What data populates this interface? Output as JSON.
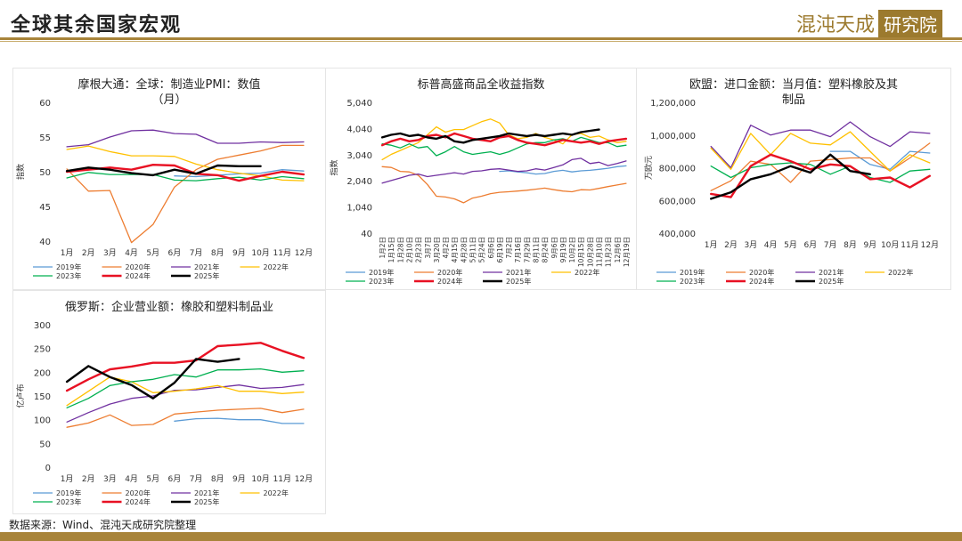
{
  "header": {
    "title": "全球其余国家宏观",
    "brand_text": "混沌天成",
    "brand_box": "研究院"
  },
  "footer": {
    "source": "数据来源：Wind、混沌天成研究院整理"
  },
  "colors": {
    "2019": "#5b9bd5",
    "2020": "#ed7d31",
    "2021": "#7030a0",
    "2022": "#ffc000",
    "2023": "#00b050",
    "2024": "#e81123",
    "2025": "#000000"
  },
  "chart_data": [
    {
      "id": "pmi",
      "type": "line",
      "title_lines": [
        "摩根大通：全球：制造业PMI：数值",
        "（月）"
      ],
      "ylabel": "指数",
      "ylim": [
        40,
        60
      ],
      "yticks": [
        "60",
        "55",
        "50",
        "45",
        "40"
      ],
      "ytick_values": [
        60,
        55,
        50,
        45,
        40
      ],
      "categories": [
        "1月",
        "2月",
        "3月",
        "4月",
        "5月",
        "6月",
        "7月",
        "8月",
        "9月",
        "10月",
        "11月",
        "12月"
      ],
      "legend": [
        [
          "2019年",
          "2020年",
          "2021年",
          "2022年"
        ],
        [
          "2023年",
          "2024年",
          "2025年"
        ]
      ],
      "series": [
        {
          "name": "2019年",
          "color": "#5b9bd5",
          "values": [
            null,
            null,
            null,
            null,
            null,
            49.4,
            49.3,
            49.5,
            49.7,
            49.8,
            50.3,
            50.1
          ]
        },
        {
          "name": "2020年",
          "color": "#ed7d31",
          "values": [
            50.4,
            47.2,
            47.3,
            39.8,
            42.4,
            47.8,
            50.3,
            51.8,
            52.4,
            53.0,
            53.8,
            53.8
          ]
        },
        {
          "name": "2021年",
          "color": "#7030a0",
          "values": [
            53.6,
            53.9,
            55.0,
            55.9,
            56.0,
            55.5,
            55.4,
            54.1,
            54.1,
            54.3,
            54.2,
            54.3
          ]
        },
        {
          "name": "2022年",
          "color": "#ffc000",
          "values": [
            53.2,
            53.7,
            52.9,
            52.3,
            52.3,
            52.2,
            51.1,
            50.3,
            49.8,
            49.4,
            48.8,
            48.7
          ]
        },
        {
          "name": "2023年",
          "color": "#00b050",
          "values": [
            49.1,
            49.9,
            49.6,
            49.6,
            49.6,
            48.8,
            48.7,
            49.0,
            49.2,
            48.8,
            49.3,
            49.0
          ]
        },
        {
          "name": "2024年",
          "color": "#e81123",
          "values": [
            50.0,
            50.3,
            50.6,
            50.3,
            51.0,
            50.9,
            49.7,
            49.5,
            48.7,
            49.4,
            50.0,
            49.6
          ]
        },
        {
          "name": "2025年",
          "color": "#000000",
          "values": [
            50.1,
            50.6,
            50.3,
            49.8,
            49.5,
            50.3,
            49.7,
            50.9,
            50.8,
            50.8,
            null,
            null
          ]
        }
      ]
    },
    {
      "id": "spgsci",
      "type": "line",
      "title_lines": [
        "标普高盛商品全收益指数"
      ],
      "ylabel": "指数",
      "ylim": [
        40,
        5040
      ],
      "yticks": [
        "5,040",
        "4,040",
        "3,040",
        "2,040",
        "1,040",
        "40"
      ],
      "ytick_values": [
        5040,
        4040,
        3040,
        2040,
        1040,
        40
      ],
      "categories": [
        "1月2日",
        "1月15日",
        "1月28日",
        "2月10日",
        "2月23日",
        "3月7日",
        "3月20日",
        "4月2日",
        "4月15日",
        "4月28日",
        "5月11日",
        "5月24日",
        "6月6日",
        "6月19日",
        "7月2日",
        "7月16日",
        "7月29日",
        "8月11日",
        "8月24日",
        "9月6日",
        "9月19日",
        "10月2日",
        "10月15日",
        "10月28日",
        "11月10日",
        "11月23日",
        "12月6日",
        "12月19日"
      ],
      "legend": [
        [
          "2019年",
          "2020年",
          "2021年",
          "2022年"
        ],
        [
          "2023年",
          "2024年",
          "2025年"
        ]
      ],
      "series": [
        {
          "name": "2019年",
          "color": "#5b9bd5",
          "values": [
            null,
            null,
            null,
            null,
            null,
            null,
            null,
            null,
            null,
            null,
            null,
            null,
            null,
            2400,
            2420,
            2380,
            2350,
            2300,
            2320,
            2400,
            2440,
            2380,
            2420,
            2440,
            2480,
            2520,
            2580,
            2610
          ]
        },
        {
          "name": "2020年",
          "color": "#ed7d31",
          "values": [
            2580,
            2550,
            2400,
            2380,
            2250,
            1900,
            1450,
            1420,
            1350,
            1200,
            1380,
            1450,
            1550,
            1600,
            1620,
            1650,
            1680,
            1720,
            1760,
            1700,
            1650,
            1620,
            1700,
            1690,
            1750,
            1820,
            1880,
            1940
          ]
        },
        {
          "name": "2021年",
          "color": "#7030a0",
          "values": [
            1950,
            2050,
            2150,
            2250,
            2300,
            2200,
            2250,
            2300,
            2350,
            2300,
            2400,
            2420,
            2480,
            2500,
            2450,
            2400,
            2420,
            2500,
            2450,
            2550,
            2650,
            2850,
            2900,
            2700,
            2750,
            2620,
            2700,
            2800
          ]
        },
        {
          "name": "2022年",
          "color": "#ffc000",
          "values": [
            2850,
            3050,
            3200,
            3350,
            3500,
            3800,
            4100,
            3900,
            4000,
            4000,
            4150,
            4300,
            4400,
            4250,
            3800,
            3650,
            3700,
            3850,
            3700,
            3600,
            3450,
            3800,
            3850,
            3700,
            3750,
            3600,
            3500,
            3550
          ]
        },
        {
          "name": "2023年",
          "color": "#00b050",
          "values": [
            3450,
            3400,
            3300,
            3450,
            3300,
            3350,
            3000,
            3150,
            3350,
            3150,
            3050,
            3100,
            3150,
            3050,
            3150,
            3300,
            3450,
            3500,
            3500,
            3600,
            3650,
            3550,
            3700,
            3600,
            3500,
            3500,
            3350,
            3400
          ]
        },
        {
          "name": "2024年",
          "color": "#e81123",
          "values": [
            3400,
            3550,
            3650,
            3550,
            3600,
            3750,
            3800,
            3700,
            3850,
            3750,
            3650,
            3600,
            3550,
            3700,
            3750,
            3600,
            3500,
            3450,
            3400,
            3500,
            3600,
            3550,
            3500,
            3550,
            3450,
            3550,
            3600,
            3650
          ]
        },
        {
          "name": "2025年",
          "color": "#000000",
          "values": [
            3700,
            3800,
            3850,
            3750,
            3800,
            3700,
            3650,
            3750,
            3550,
            3500,
            3600,
            3650,
            3700,
            3750,
            3850,
            3800,
            3750,
            3800,
            3750,
            3800,
            3850,
            3800,
            3900,
            3950,
            4000,
            null,
            null,
            null
          ]
        }
      ]
    },
    {
      "id": "eu-imports",
      "type": "line",
      "title_lines": [
        "欧盟：进口金额：当月值：塑料橡胶及其",
        "制品"
      ],
      "ylabel": "万欧元",
      "ylim": [
        400000,
        1200000
      ],
      "yticks": [
        "1,200,000",
        "1,000,000",
        "800,000",
        "600,000",
        "400,000"
      ],
      "ytick_values": [
        1200000,
        1000000,
        800000,
        600000,
        400000
      ],
      "categories": [
        "1月",
        "2月",
        "3月",
        "4月",
        "5月",
        "6月",
        "7月",
        "8月",
        "9月",
        "10月",
        "11月",
        "12月"
      ],
      "legend": [
        [
          "2019年",
          "2020年",
          "2021年",
          "2022年"
        ],
        [
          "2023年",
          "2024年",
          "2025年"
        ]
      ],
      "series": [
        {
          "name": "2019年",
          "color": "#5b9bd5",
          "values": [
            null,
            null,
            null,
            null,
            null,
            null,
            900000,
            900000,
            820000,
            790000,
            900000,
            890000
          ]
        },
        {
          "name": "2020年",
          "color": "#ed7d31",
          "values": [
            660000,
            720000,
            840000,
            820000,
            710000,
            840000,
            850000,
            860000,
            860000,
            780000,
            860000,
            950000
          ]
        },
        {
          "name": "2021年",
          "color": "#7030a0",
          "values": [
            930000,
            800000,
            1060000,
            1000000,
            1030000,
            1030000,
            990000,
            1080000,
            990000,
            930000,
            1020000,
            1010000
          ]
        },
        {
          "name": "2022年",
          "color": "#ffc000",
          "values": [
            920000,
            790000,
            1010000,
            880000,
            1010000,
            950000,
            940000,
            1020000,
            900000,
            780000,
            880000,
            830000
          ]
        },
        {
          "name": "2023年",
          "color": "#00b050",
          "values": [
            810000,
            740000,
            800000,
            820000,
            830000,
            820000,
            760000,
            810000,
            740000,
            710000,
            780000,
            790000
          ]
        },
        {
          "name": "2024年",
          "color": "#e81123",
          "values": [
            640000,
            620000,
            810000,
            880000,
            840000,
            790000,
            820000,
            810000,
            730000,
            740000,
            680000,
            750000
          ]
        },
        {
          "name": "2025年",
          "color": "#000000",
          "values": [
            610000,
            650000,
            730000,
            760000,
            810000,
            770000,
            880000,
            780000,
            760000,
            null,
            null,
            null
          ]
        }
      ]
    },
    {
      "id": "russia",
      "type": "line",
      "title_lines": [
        "俄罗斯：企业营业额：橡胶和塑料制品业"
      ],
      "ylabel": "亿卢布",
      "ylim": [
        0,
        300
      ],
      "yticks": [
        "300",
        "250",
        "200",
        "150",
        "100",
        "50",
        "0"
      ],
      "ytick_values": [
        300,
        250,
        200,
        150,
        100,
        50,
        0
      ],
      "categories": [
        "1月",
        "2月",
        "3月",
        "4月",
        "5月",
        "6月",
        "7月",
        "8月",
        "9月",
        "10月",
        "11月",
        "12月"
      ],
      "legend": [
        [
          "2019年",
          "2020年",
          "2021年",
          "2022年"
        ],
        [
          "2023年",
          "2024年",
          "2025年"
        ]
      ],
      "series": [
        {
          "name": "2019年",
          "color": "#5b9bd5",
          "values": [
            null,
            null,
            null,
            null,
            null,
            97,
            102,
            103,
            100,
            100,
            92,
            92
          ]
        },
        {
          "name": "2020年",
          "color": "#ed7d31",
          "values": [
            84,
            93,
            110,
            88,
            90,
            112,
            116,
            120,
            122,
            124,
            115,
            122
          ]
        },
        {
          "name": "2021年",
          "color": "#7030a0",
          "values": [
            95,
            115,
            133,
            145,
            150,
            162,
            163,
            168,
            173,
            166,
            168,
            174
          ]
        },
        {
          "name": "2022年",
          "color": "#ffc000",
          "values": [
            130,
            160,
            190,
            180,
            157,
            160,
            165,
            172,
            160,
            160,
            155,
            158
          ]
        },
        {
          "name": "2023年",
          "color": "#00b050",
          "values": [
            125,
            145,
            172,
            180,
            185,
            195,
            190,
            205,
            205,
            207,
            200,
            203
          ]
        },
        {
          "name": "2024年",
          "color": "#e81123",
          "values": [
            161,
            185,
            206,
            212,
            220,
            220,
            225,
            255,
            258,
            262,
            245,
            230
          ]
        },
        {
          "name": "2025年",
          "color": "#000000",
          "values": [
            180,
            213,
            190,
            173,
            145,
            178,
            228,
            222,
            228,
            null,
            null,
            null
          ]
        }
      ]
    }
  ]
}
